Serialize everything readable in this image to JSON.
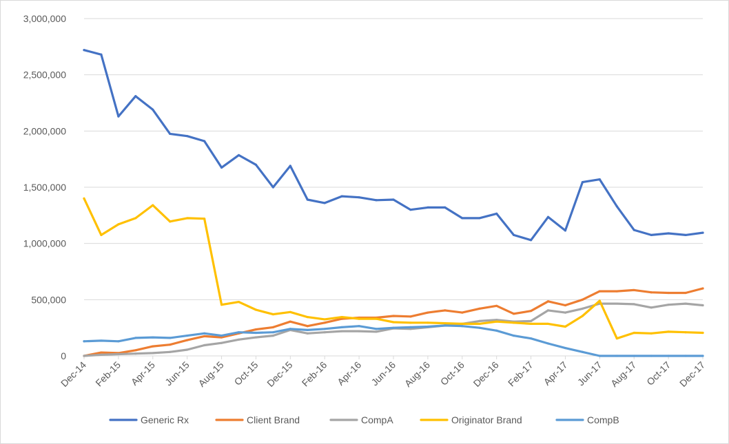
{
  "chart_data": {
    "type": "line",
    "title": "",
    "xlabel": "",
    "ylabel": "",
    "ylim": [
      0,
      3000000
    ],
    "y_ticks": [
      0,
      500000,
      1000000,
      1500000,
      2000000,
      2500000,
      3000000
    ],
    "y_tick_labels": [
      "0",
      "500,000",
      "1,000,000",
      "1,500,000",
      "2,000,000",
      "2,500,000",
      "3,000,000"
    ],
    "grid": "horizontal",
    "legend_position": "bottom",
    "categories": [
      "Dec-14",
      "Jan-15",
      "Feb-15",
      "Mar-15",
      "Apr-15",
      "May-15",
      "Jun-15",
      "Jul-15",
      "Aug-15",
      "Sep-15",
      "Oct-15",
      "Nov-15",
      "Dec-15",
      "Jan-16",
      "Feb-16",
      "Mar-16",
      "Apr-16",
      "May-16",
      "Jun-16",
      "Jul-16",
      "Aug-16",
      "Sep-16",
      "Oct-16",
      "Nov-16",
      "Dec-16",
      "Jan-17",
      "Feb-17",
      "Mar-17",
      "Apr-17",
      "May-17",
      "Jun-17",
      "Jul-17",
      "Aug-17",
      "Sep-17",
      "Oct-17",
      "Nov-17",
      "Dec-17"
    ],
    "x_tick_labels": [
      "Dec-14",
      "Feb-15",
      "Apr-15",
      "Jun-15",
      "Aug-15",
      "Oct-15",
      "Dec-15",
      "Feb-16",
      "Apr-16",
      "Jun-16",
      "Aug-16",
      "Oct-16",
      "Dec-16",
      "Feb-17",
      "Apr-17",
      "Jun-17",
      "Aug-17",
      "Oct-17",
      "Dec-17"
    ],
    "series": [
      {
        "name": "Generic Rx",
        "color": "#4472c4",
        "values": [
          2720000,
          2680000,
          2130000,
          2310000,
          2190000,
          1975000,
          1955000,
          1910000,
          1675000,
          1785000,
          1700000,
          1500000,
          1690000,
          1390000,
          1360000,
          1420000,
          1410000,
          1385000,
          1390000,
          1300000,
          1320000,
          1320000,
          1225000,
          1225000,
          1265000,
          1075000,
          1030000,
          1235000,
          1115000,
          1545000,
          1570000,
          1330000,
          1120000,
          1075000,
          1090000,
          1075000,
          1095000
        ]
      },
      {
        "name": "Client Brand",
        "color": "#ed7d31",
        "values": [
          0,
          30000,
          25000,
          50000,
          85000,
          100000,
          140000,
          175000,
          165000,
          200000,
          235000,
          255000,
          305000,
          265000,
          295000,
          330000,
          340000,
          340000,
          355000,
          350000,
          385000,
          405000,
          385000,
          420000,
          445000,
          375000,
          400000,
          485000,
          450000,
          500000,
          575000,
          575000,
          585000,
          565000,
          560000,
          560000,
          600000
        ]
      },
      {
        "name": "CompA",
        "color": "#a5a5a5",
        "values": [
          0,
          10000,
          15000,
          20000,
          25000,
          35000,
          55000,
          95000,
          115000,
          145000,
          165000,
          180000,
          230000,
          200000,
          210000,
          220000,
          220000,
          215000,
          245000,
          240000,
          255000,
          270000,
          285000,
          310000,
          320000,
          305000,
          310000,
          405000,
          385000,
          420000,
          465000,
          465000,
          460000,
          430000,
          455000,
          465000,
          450000
        ]
      },
      {
        "name": "Originator Brand",
        "color": "#ffc000",
        "values": [
          1400000,
          1075000,
          1170000,
          1225000,
          1340000,
          1195000,
          1225000,
          1220000,
          455000,
          480000,
          410000,
          370000,
          390000,
          345000,
          325000,
          345000,
          330000,
          330000,
          300000,
          295000,
          295000,
          290000,
          285000,
          285000,
          305000,
          295000,
          285000,
          285000,
          260000,
          355000,
          490000,
          155000,
          205000,
          200000,
          215000,
          210000,
          205000
        ]
      },
      {
        "name": "CompB",
        "color": "#5b9bd5",
        "values": [
          130000,
          135000,
          130000,
          160000,
          165000,
          160000,
          180000,
          200000,
          180000,
          210000,
          205000,
          210000,
          240000,
          230000,
          240000,
          255000,
          265000,
          240000,
          250000,
          255000,
          260000,
          270000,
          265000,
          250000,
          225000,
          180000,
          155000,
          110000,
          70000,
          35000,
          0,
          0,
          0,
          0,
          0,
          0,
          0
        ]
      }
    ]
  }
}
